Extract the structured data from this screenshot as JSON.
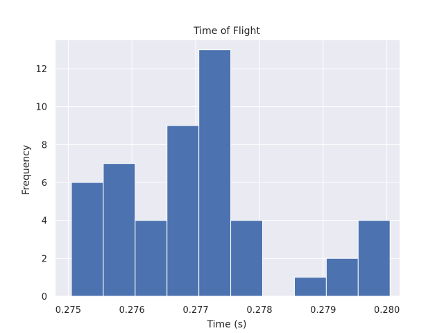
{
  "chart_data": {
    "type": "bar",
    "title": "Time of Flight",
    "xlabel": "Time (s)",
    "ylabel": "Frequency",
    "bin_edges": [
      0.27505,
      0.27555,
      0.27605,
      0.27655,
      0.27705,
      0.27755,
      0.27805,
      0.27855,
      0.27905,
      0.27955,
      0.28005
    ],
    "values": [
      6,
      7,
      4,
      9,
      13,
      4,
      0,
      1,
      2,
      4
    ],
    "xlim": [
      0.2748,
      0.2802
    ],
    "ylim": [
      0,
      13.5
    ],
    "xticks": [
      "0.275",
      "0.276",
      "0.277",
      "0.278",
      "0.279",
      "0.280"
    ],
    "yticks": [
      "0",
      "2",
      "4",
      "6",
      "8",
      "10",
      "12"
    ],
    "grid": true,
    "bar_color": "#4c72b0",
    "background_color": "#eaeaf2"
  }
}
